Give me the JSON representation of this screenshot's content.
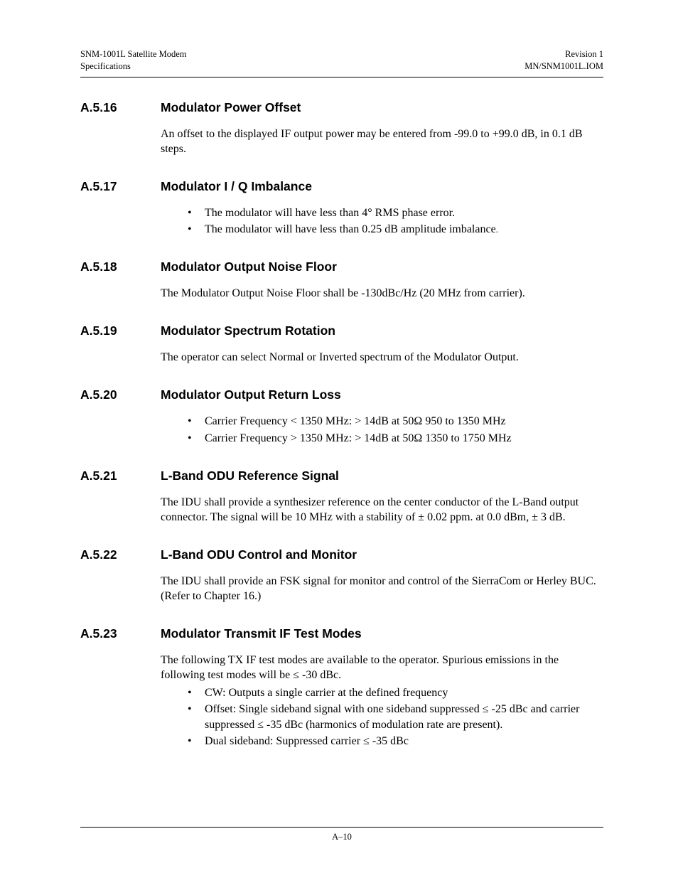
{
  "header": {
    "left_line1": "SNM-1001L Satellite Modem",
    "left_line2": "Specifications",
    "right_line1": "Revision 1",
    "right_line2": "MN/SNM1001L.IOM"
  },
  "sections": {
    "s16": {
      "num": "A.5.16",
      "title": "Modulator Power Offset",
      "para": "An offset to the displayed IF output power may be entered from -99.0 to +99.0 dB, in 0.1 dB steps."
    },
    "s17": {
      "num": "A.5.17",
      "title": "Modulator I / Q Imbalance",
      "bullets": [
        "The modulator will have less than 4° RMS phase error.",
        "The modulator will have less than 0.25 dB amplitude imbalance"
      ]
    },
    "s18": {
      "num": "A.5.18",
      "title": "Modulator Output Noise Floor",
      "para": "The Modulator Output Noise Floor shall be -130dBc/Hz (20 MHz from carrier)."
    },
    "s19": {
      "num": "A.5.19",
      "title": "Modulator Spectrum Rotation",
      "para": "The operator can select Normal or Inverted spectrum of the Modulator Output."
    },
    "s20": {
      "num": "A.5.20",
      "title": "Modulator Output Return Loss",
      "bullets": [
        "Carrier Frequency < 1350 MHz: > 14dB at 50Ω 950 to 1350 MHz",
        "Carrier Frequency > 1350 MHz: > 14dB at 50Ω 1350 to 1750 MHz"
      ]
    },
    "s21": {
      "num": "A.5.21",
      "title": "L-Band ODU Reference Signal",
      "para": "The IDU shall provide a synthesizer reference on the center conductor of the L-Band output connector.  The signal will be 10 MHz with a stability of ± 0.02 ppm. at 0.0 dBm, ± 3 dB."
    },
    "s22": {
      "num": "A.5.22",
      "title": "L-Band ODU Control and Monitor",
      "para": "The IDU shall provide an FSK signal for monitor and control of the SierraCom or Herley BUC. (Refer to Chapter 16.)"
    },
    "s23": {
      "num": "A.5.23",
      "title": "Modulator Transmit IF Test Modes",
      "para": "The following TX IF test modes are available to the operator. Spurious emissions in the following test modes will be ≤ -30 dBc.",
      "bullets": [
        "CW: Outputs a single carrier at the defined frequency",
        "Offset: Single sideband signal with one sideband suppressed ≤ -25 dBc and carrier suppressed ≤ -35 dBc (harmonics of modulation rate are present).",
        "Dual sideband: Suppressed carrier ≤ -35 dBc"
      ]
    }
  },
  "footer": {
    "page_num": "A–10"
  }
}
